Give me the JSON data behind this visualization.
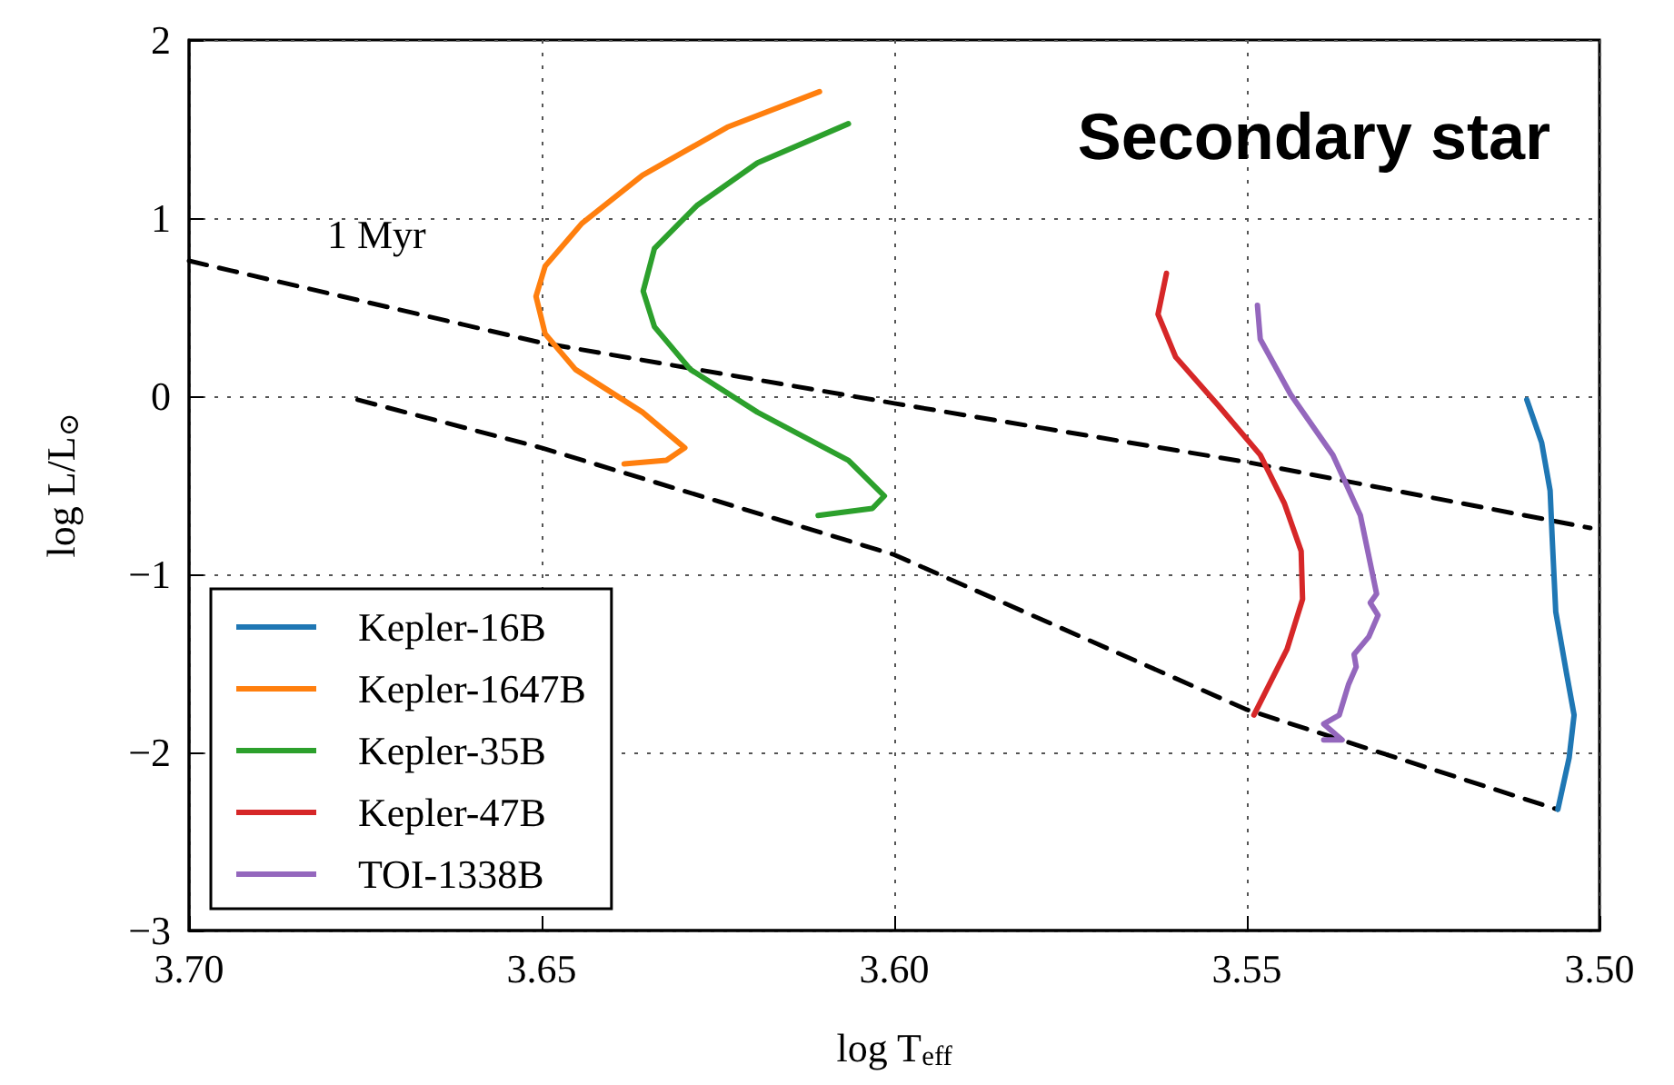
{
  "chart_data": {
    "type": "line",
    "title": "Secondary star",
    "xlabel": "log T$_{eff}$",
    "ylabel": "log L/L$_{⊙}$",
    "xlim": [
      3.7,
      3.5
    ],
    "xticks": [
      {
        "value": 3.7,
        "label": "3.70"
      },
      {
        "value": 3.65,
        "label": "3.65"
      },
      {
        "value": 3.6,
        "label": "3.60"
      },
      {
        "value": 3.55,
        "label": "3.55"
      },
      {
        "value": 3.5,
        "label": "3.50"
      }
    ],
    "ylim": [
      -3,
      2
    ],
    "yticks": [
      {
        "value": -3,
        "label": "−3"
      },
      {
        "value": -2,
        "label": "−2"
      },
      {
        "value": -1,
        "label": "−1"
      },
      0,
      1,
      2
    ],
    "grid": true,
    "legend": "bottom left",
    "marker": "none",
    "annotations": [
      "1 Myr"
    ],
    "series": [
      {
        "name": "Kepler-16B",
        "color": "#1f77b4",
        "x": [
          3.5103,
          3.5082,
          3.507,
          3.5067,
          3.5062,
          3.5047,
          3.5036,
          3.5043,
          3.5059
        ],
        "values": [
          -0.02,
          -0.26,
          -0.53,
          -0.8,
          -1.21,
          -1.55,
          -1.79,
          -2.03,
          -2.32
        ]
      },
      {
        "name": "Kepler-1647B",
        "color": "#ff7f0e",
        "x": [
          3.6106,
          3.6237,
          3.6357,
          3.6443,
          3.6495,
          3.6508,
          3.6495,
          3.6452,
          3.6357,
          3.6297,
          3.6323,
          3.6383
        ],
        "values": [
          1.71,
          1.51,
          1.24,
          0.97,
          0.73,
          0.56,
          0.35,
          0.15,
          -0.09,
          -0.29,
          -0.36,
          -0.38
        ]
      },
      {
        "name": "Kepler-35B",
        "color": "#2ca02c",
        "x": [
          3.6065,
          3.6194,
          3.628,
          3.634,
          3.6356,
          3.634,
          3.6289,
          3.6194,
          3.6065,
          3.6014,
          3.6031,
          3.6108
        ],
        "values": [
          1.53,
          1.31,
          1.07,
          0.83,
          0.59,
          0.39,
          0.15,
          -0.09,
          -0.36,
          -0.56,
          -0.63,
          -0.67
        ]
      },
      {
        "name": "Kepler-47B",
        "color": "#d62728",
        "x": [
          3.5614,
          3.5626,
          3.5601,
          3.5541,
          3.5481,
          3.5447,
          3.5423,
          3.5421,
          3.5443,
          3.549
        ],
        "values": [
          0.69,
          0.46,
          0.22,
          -0.05,
          -0.33,
          -0.6,
          -0.87,
          -1.14,
          -1.42,
          -1.79
        ]
      },
      {
        "name": "TOI-1338B",
        "color": "#9467bd",
        "x": [
          3.5485,
          3.5481,
          3.5438,
          3.5378,
          3.5339,
          3.5316,
          3.5325,
          3.5314,
          3.5327,
          3.5348,
          3.5345,
          3.5356,
          3.5369,
          3.5391,
          3.5365,
          3.5391
        ],
        "values": [
          0.51,
          0.32,
          0.01,
          -0.33,
          -0.67,
          -1.11,
          -1.16,
          -1.23,
          -1.35,
          -1.45,
          -1.52,
          -1.62,
          -1.79,
          -1.84,
          -1.93,
          -1.93
        ]
      },
      {
        "color": "#000000",
        "line_style": "dashed",
        "x": [
          3.7,
          3.65,
          3.6,
          3.55,
          3.5013
        ],
        "values": [
          0.76,
          0.3,
          -0.04,
          -0.37,
          -0.74
        ]
      },
      {
        "color": "#000000",
        "line_style": "dashed",
        "x": [
          3.6761,
          3.65,
          3.6,
          3.55,
          3.506
        ],
        "values": [
          -0.02,
          -0.29,
          -0.89,
          -1.76,
          -2.32
        ]
      }
    ]
  }
}
